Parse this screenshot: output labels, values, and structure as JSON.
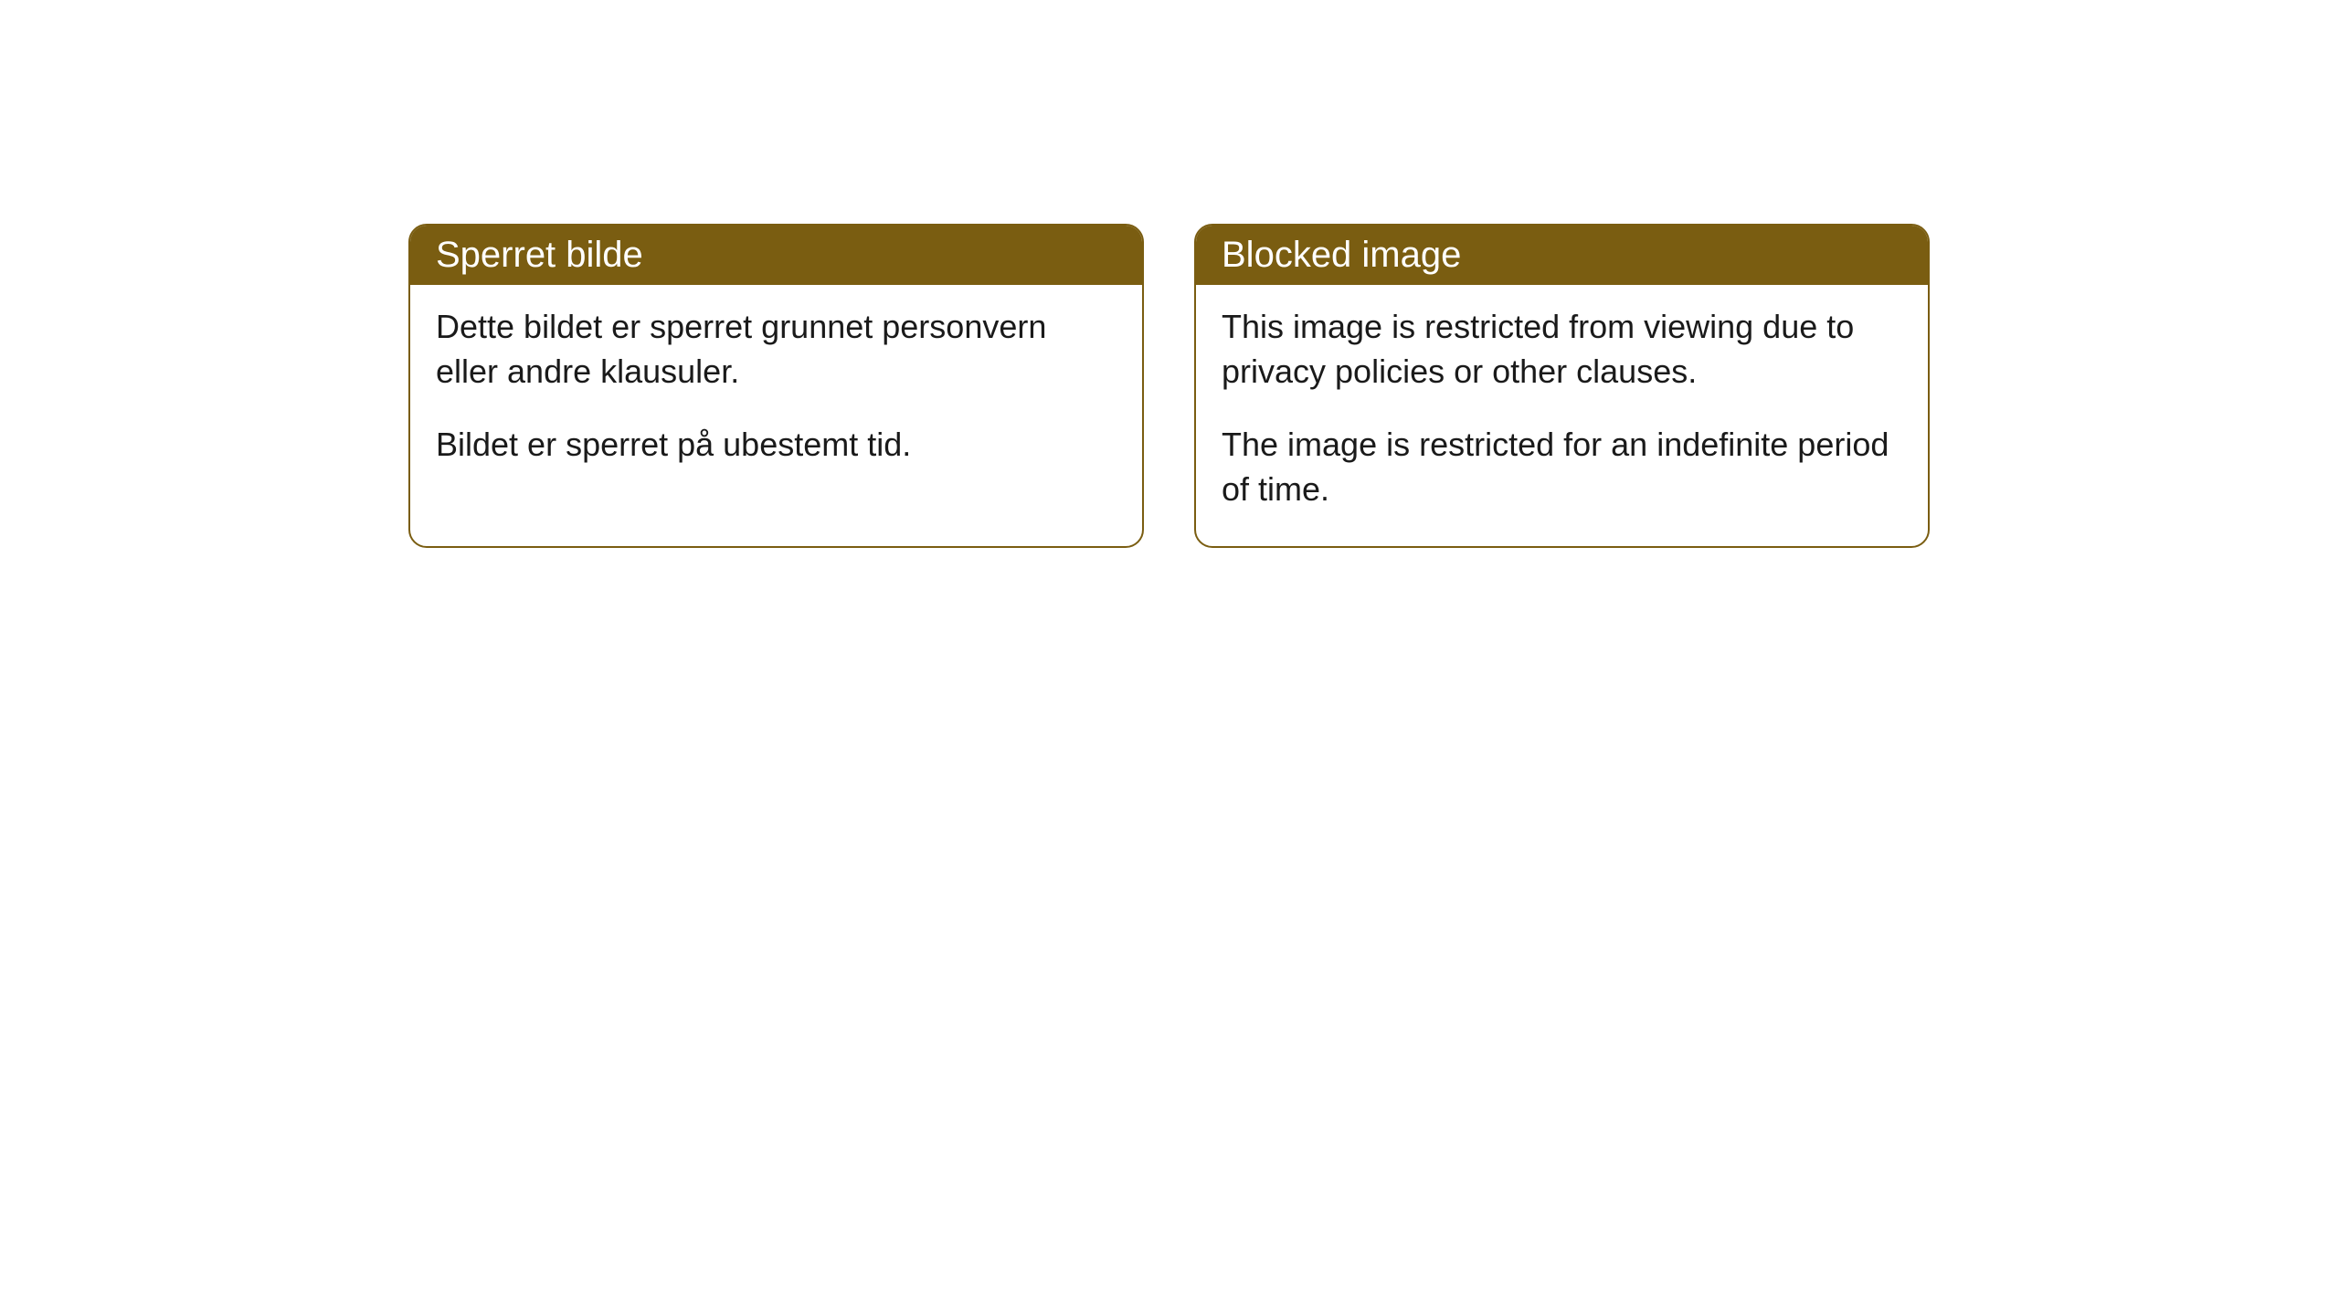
{
  "cards": [
    {
      "header": "Sperret bilde",
      "paragraph1": "Dette bildet er sperret grunnet personvern eller andre klausuler.",
      "paragraph2": "Bildet er sperret på ubestemt tid."
    },
    {
      "header": "Blocked image",
      "paragraph1": "This image is restricted from viewing due to privacy policies or other clauses.",
      "paragraph2": "The image is restricted for an indefinite period of time."
    }
  ],
  "styling": {
    "header_bg_color": "#7a5d11",
    "header_text_color": "#ffffff",
    "border_color": "#7a5d11",
    "body_bg_color": "#ffffff",
    "body_text_color": "#1a1a1a",
    "border_radius": 20,
    "header_fontsize": 40,
    "body_fontsize": 36
  }
}
